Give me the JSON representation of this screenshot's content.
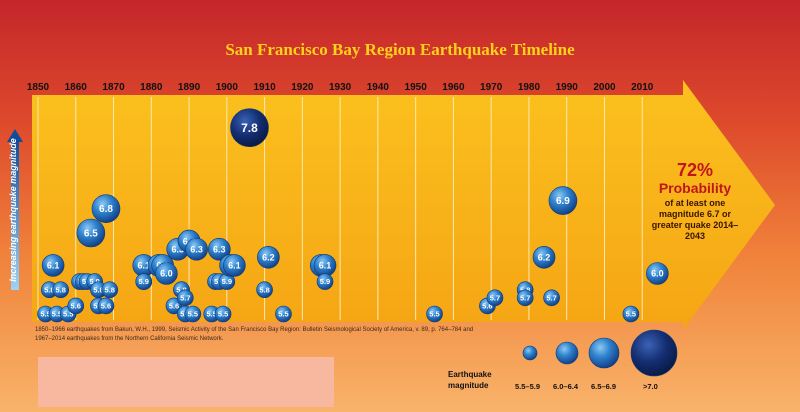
{
  "title": "San Francisco Bay Region Earthquake Timeline",
  "y_axis_label": "Increasing earthquake magnitude",
  "probability": {
    "percent": "72%",
    "word": "Probability",
    "description": "of at least one magnitude 6.7 or greater quake 2014–2043"
  },
  "credit": "1850–1966 earthquakes from Bakun, W.H., 1999, Seismic Activity of the San Francisco Bay Region: Bulletin Seismological Society of America, v. 89, p. 764–784 and 1967–2014 earthquakes from the Northern California Seismic Network.",
  "legend": {
    "title": "Earthquake magnitude",
    "items": [
      {
        "label": "5.5–5.9",
        "min": 5.5,
        "max": 5.9
      },
      {
        "label": "6.0–6.4",
        "min": 6.0,
        "max": 6.4
      },
      {
        "label": "6.5–6.9",
        "min": 6.5,
        "max": 6.9
      },
      {
        "label": ">7.0",
        "min": 7.0,
        "max": 8.0
      }
    ]
  },
  "colors": {
    "bubble_fill": "#1e6fc0",
    "bubble_dark": "#0f2f6b",
    "bubble_light": "#58a8e6",
    "arrow": "#f7b21a",
    "grid": "#fde9b0",
    "probability_text": "#c0171c"
  },
  "chart_data": {
    "type": "scatter",
    "title": "San Francisco Bay Region Earthquake Timeline",
    "xlabel": "",
    "ylabel": "Increasing earthquake magnitude",
    "xlim": [
      1850,
      2020
    ],
    "x_ticks": [
      1850,
      1860,
      1870,
      1880,
      1890,
      1900,
      1910,
      1920,
      1930,
      1940,
      1950,
      1960,
      1970,
      1980,
      1990,
      2000,
      2010
    ],
    "grid": true,
    "points": [
      {
        "year": 1852,
        "mag": 5.5
      },
      {
        "year": 1855,
        "mag": 5.5
      },
      {
        "year": 1853,
        "mag": 5.8
      },
      {
        "year": 1854,
        "mag": 6.1
      },
      {
        "year": 1856,
        "mag": 5.8
      },
      {
        "year": 1858,
        "mag": 5.5
      },
      {
        "year": 1860,
        "mag": 5.6
      },
      {
        "year": 1861,
        "mag": 5.9
      },
      {
        "year": 1862,
        "mag": 5.9
      },
      {
        "year": 1863,
        "mag": 5.9
      },
      {
        "year": 1864,
        "mag": 6.5
      },
      {
        "year": 1865,
        "mag": 5.9
      },
      {
        "year": 1866,
        "mag": 5.8
      },
      {
        "year": 1866,
        "mag": 5.6
      },
      {
        "year": 1868,
        "mag": 6.8
      },
      {
        "year": 1868,
        "mag": 5.6
      },
      {
        "year": 1869,
        "mag": 5.8
      },
      {
        "year": 1878,
        "mag": 6.1
      },
      {
        "year": 1882,
        "mag": 6.1
      },
      {
        "year": 1878,
        "mag": 5.9
      },
      {
        "year": 1878,
        "mag": 5.9
      },
      {
        "year": 1883,
        "mag": 6.1
      },
      {
        "year": 1884,
        "mag": 6.0
      },
      {
        "year": 1886,
        "mag": 5.6
      },
      {
        "year": 1887,
        "mag": 6.3
      },
      {
        "year": 1888,
        "mag": 5.8
      },
      {
        "year": 1888,
        "mag": 5.8
      },
      {
        "year": 1889,
        "mag": 5.7
      },
      {
        "year": 1889,
        "mag": 5.5
      },
      {
        "year": 1890,
        "mag": 6.4
      },
      {
        "year": 1890,
        "mag": 6.4
      },
      {
        "year": 1891,
        "mag": 5.5
      },
      {
        "year": 1892,
        "mag": 6.3
      },
      {
        "year": 1896,
        "mag": 5.5
      },
      {
        "year": 1897,
        "mag": 5.9
      },
      {
        "year": 1898,
        "mag": 6.3
      },
      {
        "year": 1898,
        "mag": 5.9
      },
      {
        "year": 1899,
        "mag": 5.5
      },
      {
        "year": 1900,
        "mag": 5.9
      },
      {
        "year": 1901,
        "mag": 6.1
      },
      {
        "year": 1902,
        "mag": 6.1
      },
      {
        "year": 1906,
        "mag": 7.8
      },
      {
        "year": 1910,
        "mag": 5.8
      },
      {
        "year": 1911,
        "mag": 6.2
      },
      {
        "year": 1915,
        "mag": 5.5
      },
      {
        "year": 1925,
        "mag": 6.1
      },
      {
        "year": 1926,
        "mag": 6.1
      },
      {
        "year": 1926,
        "mag": 5.9
      },
      {
        "year": 1955,
        "mag": 5.5
      },
      {
        "year": 1969,
        "mag": 5.6
      },
      {
        "year": 1971,
        "mag": 5.7
      },
      {
        "year": 1979,
        "mag": 5.8
      },
      {
        "year": 1979,
        "mag": 5.7
      },
      {
        "year": 1984,
        "mag": 6.2
      },
      {
        "year": 1986,
        "mag": 5.7
      },
      {
        "year": 1989,
        "mag": 6.9
      },
      {
        "year": 2007,
        "mag": 5.5
      },
      {
        "year": 2014,
        "mag": 6.0
      }
    ]
  }
}
